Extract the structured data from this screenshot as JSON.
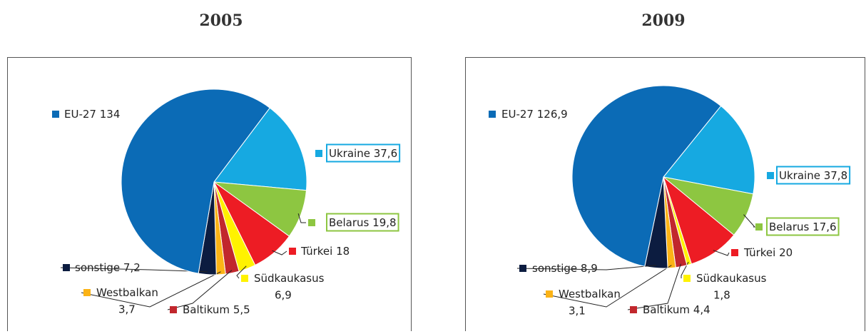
{
  "chart_data": [
    {
      "type": "pie",
      "title": "2005",
      "categories": [
        "Ukraine",
        "Belarus",
        "Türkei",
        "Südkaukasus",
        "Baltikum",
        "Westbalkan",
        "sonstige",
        "EU-27"
      ],
      "values": [
        37.6,
        19.8,
        18,
        6.9,
        5.5,
        3.7,
        7.2,
        134
      ],
      "value_labels": [
        "37,6",
        "19,8",
        "18",
        "6,9",
        "5,5",
        "3,7",
        "7,2",
        "134"
      ],
      "colors": [
        "#16a9e1",
        "#8dc641",
        "#ed1c24",
        "#fff200",
        "#c1272d",
        "#fbb316",
        "#0c1c40",
        "#0b6bb6"
      ]
    },
    {
      "type": "pie",
      "title": "2009",
      "categories": [
        "Ukraine",
        "Belarus",
        "Türkei",
        "Südkaukasus",
        "Baltikum",
        "Westbalkan",
        "sonstige",
        "EU-27"
      ],
      "values": [
        37.8,
        17.6,
        20,
        1.8,
        4.4,
        3.1,
        8.9,
        126.9
      ],
      "value_labels": [
        "37,8",
        "17,6",
        "20",
        "1,8",
        "4,4",
        "3,1",
        "8,9",
        "126,9"
      ],
      "colors": [
        "#16a9e1",
        "#8dc641",
        "#ed1c24",
        "#fff200",
        "#c1272d",
        "#fbb316",
        "#0c1c40",
        "#0b6bb6"
      ]
    }
  ]
}
